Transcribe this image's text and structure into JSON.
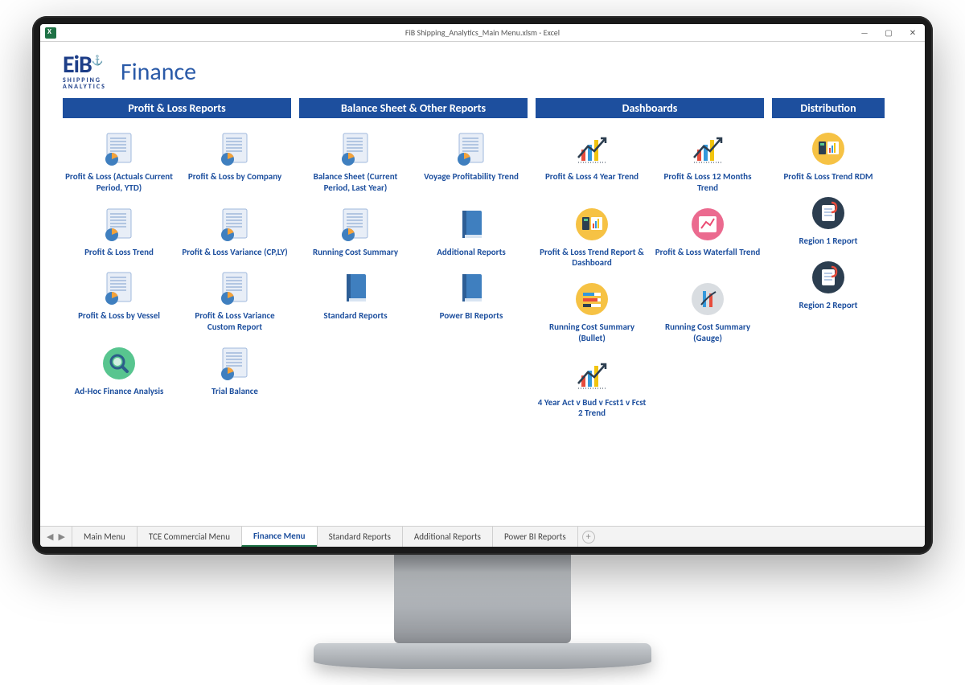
{
  "window": {
    "title": "FiB Shipping_Analytics_Main Menu.xlsm - Excel",
    "app": "Excel"
  },
  "branding": {
    "logo_main": "EiB",
    "logo_sub1": "SHIPPING",
    "logo_sub2": "ANALYTICS",
    "page_title": "Finance",
    "title_color": "#2a5aa8",
    "logo_color": "#1d3e88"
  },
  "section_header_bg": "#1d4f9e",
  "section_header_fg": "#ffffff",
  "label_color": "#1d4f9e",
  "icon_palette": {
    "report_page": "#e8eef7",
    "report_lines": "#9fb8dc",
    "pie_orange": "#f4a23a",
    "pie_blue": "#3f7fbf",
    "book_blue": "#3f7fbf",
    "book_shadow": "#2d5e96",
    "chart_red": "#e74c3c",
    "chart_blue": "#3498db",
    "chart_yellow": "#f1c40f",
    "circle_yellow": "#f6c244",
    "circle_pink": "#eb6a8f",
    "circle_navy": "#2c3e50",
    "circle_green": "#58c58f",
    "circle_grey": "#d9dde1"
  },
  "sections": [
    {
      "title": "Profit & Loss Reports",
      "cols": 2,
      "items": [
        {
          "label": "Profit & Loss (Actuals Current Period, YTD)",
          "icon": "report"
        },
        {
          "label": "Profit & Loss by Company",
          "icon": "report"
        },
        {
          "label": "Profit & Loss Trend",
          "icon": "report"
        },
        {
          "label": "Profit & Loss Variance (CP,LY)",
          "icon": "report"
        },
        {
          "label": "Profit & Loss by Vessel",
          "icon": "report"
        },
        {
          "label": "Profit & Loss Variance Custom Report",
          "icon": "report"
        },
        {
          "label": "Ad-Hoc Finance Analysis",
          "icon": "magnify-green"
        },
        {
          "label": "Trial Balance",
          "icon": "report"
        }
      ]
    },
    {
      "title": "Balance Sheet & Other Reports",
      "cols": 2,
      "items": [
        {
          "label": "Balance Sheet (Current Period, Last Year)",
          "icon": "report"
        },
        {
          "label": "Voyage Profitability Trend",
          "icon": "report"
        },
        {
          "label": "Running Cost Summary",
          "icon": "report"
        },
        {
          "label": "Additional Reports",
          "icon": "book"
        },
        {
          "label": "Standard Reports",
          "icon": "book"
        },
        {
          "label": "Power BI Reports",
          "icon": "book"
        }
      ]
    },
    {
      "title": "Dashboards",
      "cols": 2,
      "items": [
        {
          "label": "Profit & Loss 4 Year Trend",
          "icon": "barchart"
        },
        {
          "label": "Profit & Loss 12 Months Trend",
          "icon": "barchart"
        },
        {
          "label": "Profit & Loss Trend Report & Dashboard",
          "icon": "circle-yellow-dash"
        },
        {
          "label": "Profit & Loss Waterfall Trend",
          "icon": "circle-pink-chart"
        },
        {
          "label": "Running Cost Summary (Bullet)",
          "icon": "circle-yellow-bullet"
        },
        {
          "label": "Running Cost Summary (Gauge)",
          "icon": "circle-grey-gauge"
        },
        {
          "label": "4 Year Act v Bud v Fcst1 v Fcst 2 Trend",
          "icon": "barchart"
        }
      ]
    },
    {
      "title": "Distribution",
      "cols": 1,
      "items": [
        {
          "label": "Profit & Loss Trend RDM",
          "icon": "circle-yellow-dash"
        },
        {
          "label": "Region 1 Report",
          "icon": "circle-navy-clip"
        },
        {
          "label": "Region 2 Report",
          "icon": "circle-navy-clip"
        }
      ]
    }
  ],
  "tabs": {
    "list": [
      {
        "label": "Main Menu",
        "active": false
      },
      {
        "label": "TCE Commercial Menu",
        "active": false
      },
      {
        "label": "Finance Menu",
        "active": true
      },
      {
        "label": "Standard Reports",
        "active": false
      },
      {
        "label": "Additional Reports",
        "active": false
      },
      {
        "label": "Power BI Reports",
        "active": false
      }
    ]
  }
}
